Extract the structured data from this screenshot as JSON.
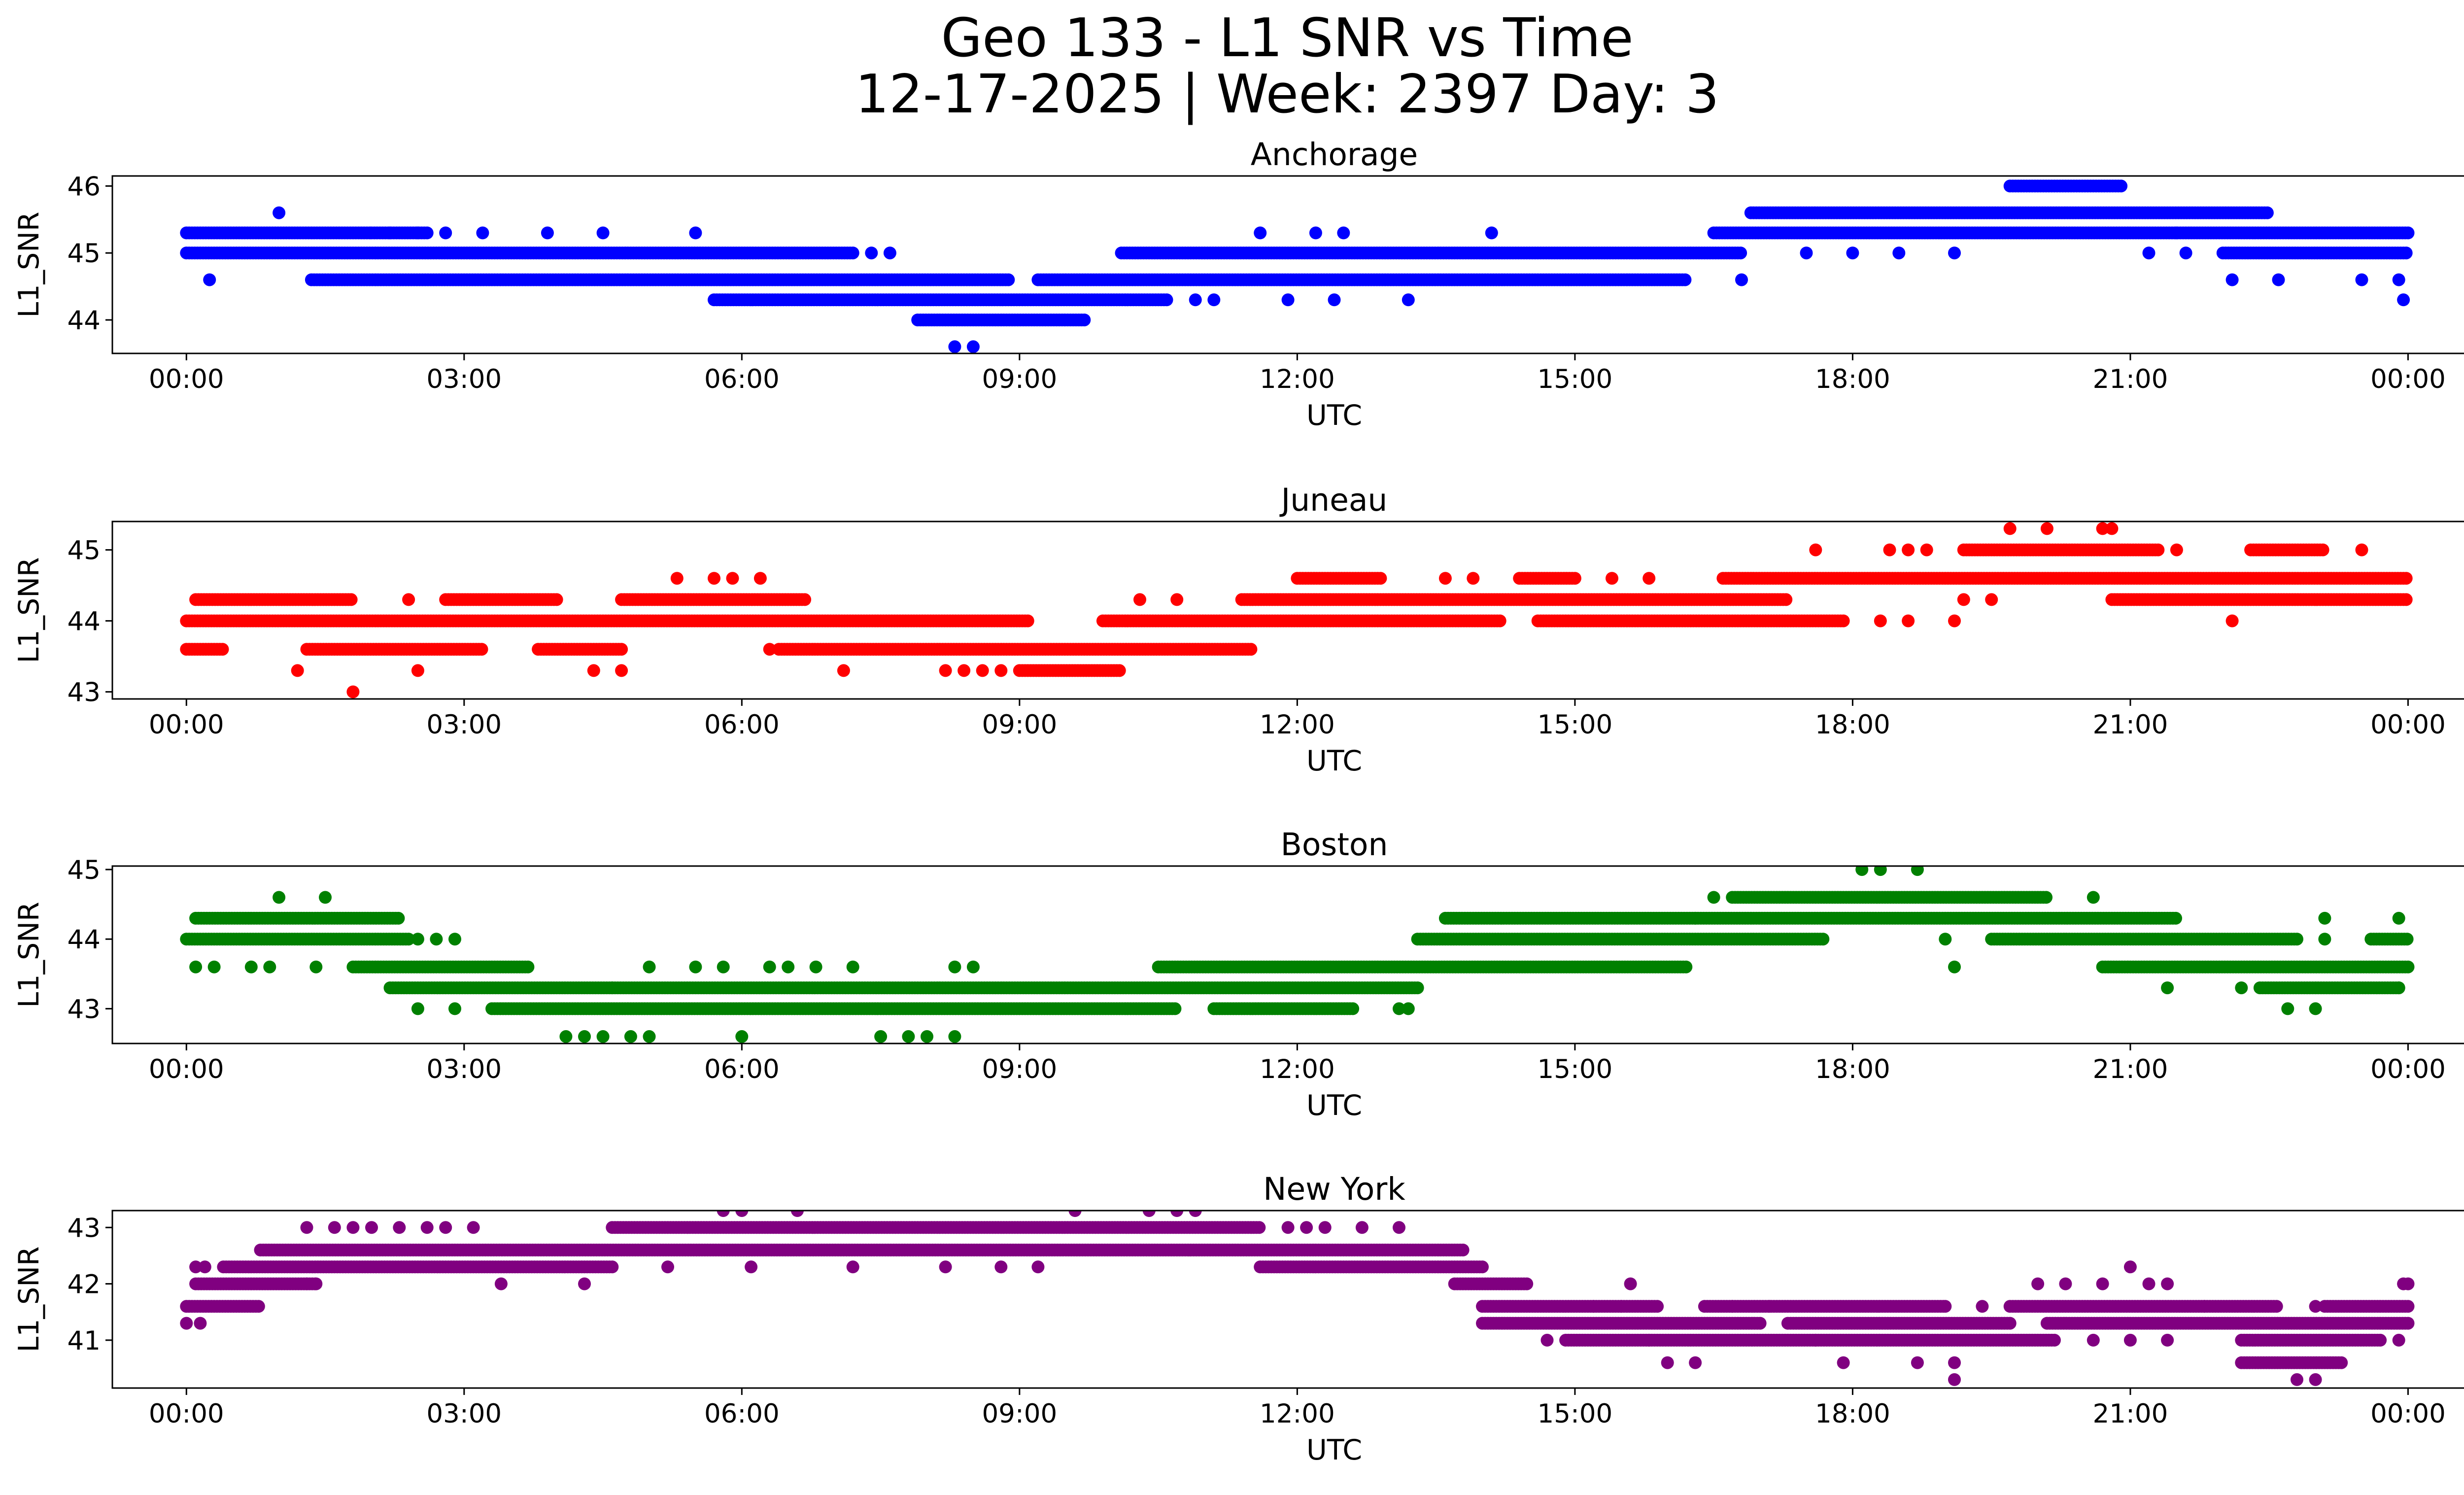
{
  "figure": {
    "title_line1": "Geo 133 - L1 SNR vs Time",
    "title_line2": "12-17-2025 | Week: 2397 Day: 3"
  },
  "chart_data": [
    {
      "type": "scatter",
      "title": "Anchorage",
      "xlabel": "UTC",
      "ylabel": "L1_SNR",
      "color": "#0000ff",
      "x_range_hours": [
        -0.8,
        25.6
      ],
      "ylim": [
        43.5,
        46.15
      ],
      "yticks": [
        44,
        45,
        46
      ],
      "xticks": [
        "00:00",
        "03:00",
        "06:00",
        "09:00",
        "12:00",
        "15:00",
        "18:00",
        "21:00",
        "00:00"
      ],
      "xtick_hours": [
        0,
        3,
        6,
        9,
        12,
        15,
        18,
        21,
        24
      ],
      "bands": [
        {
          "y": 45.3,
          "x": [
            [
              0,
              2
            ],
            [
              2,
              2.6
            ],
            [
              16.5,
              24
            ]
          ]
        },
        {
          "y": 45.0,
          "x": [
            [
              0,
              7.2
            ],
            [
              10.1,
              16.8
            ],
            [
              22,
              24
            ]
          ]
        },
        {
          "y": 44.6,
          "x": [
            [
              1.35,
              8.9
            ],
            [
              9.2,
              16.2
            ]
          ]
        },
        {
          "y": 45.6,
          "x": [
            [
              16.9,
              22.5
            ]
          ]
        },
        {
          "y": 44.3,
          "x": [
            [
              5.7,
              10.6
            ]
          ]
        },
        {
          "y": 44.0,
          "x": [
            [
              7.9,
              9.7
            ]
          ]
        },
        {
          "y": 46.0,
          "x": [
            [
              19.7,
              20.9
            ]
          ]
        }
      ],
      "points": [
        {
          "y": 45.6,
          "x": [
            1.0
          ]
        },
        {
          "y": 44.6,
          "x": [
            0.25,
            16.8,
            22.1,
            22.6,
            23.5,
            23.9
          ]
        },
        {
          "y": 45.3,
          "x": [
            2.2,
            2.5,
            2.8,
            3.2,
            3.9,
            4.5,
            5.5,
            11.6,
            12.2,
            12.5,
            14.1,
            21.5
          ]
        },
        {
          "y": 45.0,
          "x": [
            7.4,
            7.6,
            17.5,
            18.0,
            18.5,
            19.1,
            21.2,
            21.6
          ]
        },
        {
          "y": 44.3,
          "x": [
            10.9,
            11.1,
            11.9,
            12.4,
            13.2
          ]
        },
        {
          "y": 43.6,
          "x": [
            8.3,
            8.5
          ]
        },
        {
          "y": 44.3,
          "x": [
            23.95
          ]
        }
      ]
    },
    {
      "type": "scatter",
      "title": "Juneau",
      "xlabel": "UTC",
      "ylabel": "L1_SNR",
      "color": "#ff0000",
      "x_range_hours": [
        -0.8,
        25.6
      ],
      "ylim": [
        42.9,
        45.4
      ],
      "yticks": [
        43,
        44,
        45
      ],
      "xticks": [
        "00:00",
        "03:00",
        "06:00",
        "09:00",
        "12:00",
        "15:00",
        "18:00",
        "21:00",
        "00:00"
      ],
      "xtick_hours": [
        0,
        3,
        6,
        9,
        12,
        15,
        18,
        21,
        24
      ],
      "bands": [
        {
          "y": 44.0,
          "x": [
            [
              0,
              9.1
            ],
            [
              9.9,
              14.2
            ],
            [
              14.6,
              17.9
            ]
          ]
        },
        {
          "y": 44.3,
          "x": [
            [
              0.1,
              1.8
            ],
            [
              2.8,
              4.0
            ],
            [
              4.7,
              6.7
            ],
            [
              11.4,
              17.3
            ],
            [
              20.8,
              24
            ]
          ]
        },
        {
          "y": 43.6,
          "x": [
            [
              0,
              0.4
            ],
            [
              1.3,
              3.2
            ],
            [
              3.8,
              4.7
            ],
            [
              6.4,
              11.5
            ]
          ]
        },
        {
          "y": 44.6,
          "x": [
            [
              12.0,
              12.9
            ],
            [
              14.4,
              15.0
            ],
            [
              16.6,
              24
            ]
          ]
        },
        {
          "y": 45.0,
          "x": [
            [
              19.2,
              21.3
            ],
            [
              22.3,
              23.1
            ]
          ]
        },
        {
          "y": 43.3,
          "x": [
            [
              9.0,
              10.1
            ]
          ]
        }
      ],
      "points": [
        {
          "y": 43.0,
          "x": [
            1.8
          ]
        },
        {
          "y": 43.3,
          "x": [
            1.2,
            2.5,
            4.4,
            4.7,
            7.1,
            8.2,
            8.4,
            8.6,
            8.8
          ]
        },
        {
          "y": 44.6,
          "x": [
            5.3,
            5.7,
            5.9,
            6.2,
            13.6,
            13.9,
            15.4,
            15.8
          ]
        },
        {
          "y": 44.3,
          "x": [
            2.4,
            10.3,
            10.7,
            19.2,
            19.5
          ]
        },
        {
          "y": 44.0,
          "x": [
            18.3,
            18.6,
            19.1,
            22.1
          ]
        },
        {
          "y": 45.0,
          "x": [
            17.6,
            18.4,
            18.6,
            18.8,
            21.5,
            23.5
          ]
        },
        {
          "y": 45.3,
          "x": [
            19.7,
            20.1,
            20.7,
            20.8
          ]
        },
        {
          "y": 43.6,
          "x": [
            6.3
          ]
        }
      ]
    },
    {
      "type": "scatter",
      "title": "Boston",
      "xlabel": "UTC",
      "ylabel": "L1_SNR",
      "color": "#008000",
      "x_range_hours": [
        -0.8,
        25.6
      ],
      "ylim": [
        42.5,
        45.05
      ],
      "yticks": [
        43,
        44,
        45
      ],
      "xticks": [
        "00:00",
        "03:00",
        "06:00",
        "09:00",
        "12:00",
        "15:00",
        "18:00",
        "21:00",
        "00:00"
      ],
      "xtick_hours": [
        0,
        3,
        6,
        9,
        12,
        15,
        18,
        21,
        24
      ],
      "bands": [
        {
          "y": 44.0,
          "x": [
            [
              0,
              2.4
            ],
            [
              13.3,
              17.7
            ],
            [
              19.5,
              22.8
            ],
            [
              23.6,
              24
            ]
          ]
        },
        {
          "y": 44.3,
          "x": [
            [
              0.1,
              2.3
            ],
            [
              13.6,
              16.3
            ],
            [
              16.3,
              21.5
            ]
          ]
        },
        {
          "y": 43.6,
          "x": [
            [
              1.8,
              3.7
            ],
            [
              10.5,
              16.2
            ],
            [
              20.7,
              24
            ]
          ]
        },
        {
          "y": 43.3,
          "x": [
            [
              2.2,
              4.6
            ],
            [
              4.6,
              13.3
            ],
            [
              22.4,
              23.9
            ]
          ]
        },
        {
          "y": 43.0,
          "x": [
            [
              3.3,
              10.7
            ],
            [
              11.1,
              12.6
            ]
          ]
        },
        {
          "y": 44.6,
          "x": [
            [
              16.7,
              20.1
            ]
          ]
        }
      ],
      "points": [
        {
          "y": 42.6,
          "x": [
            4.1,
            4.3,
            4.5,
            4.8,
            5.0,
            6.0,
            7.5,
            7.8,
            8.0,
            8.3
          ]
        },
        {
          "y": 43.6,
          "x": [
            0.1,
            0.3,
            0.7,
            0.9,
            1.4,
            5.0,
            5.5,
            5.8,
            6.3,
            6.5,
            6.8,
            7.2,
            8.3,
            8.5
          ]
        },
        {
          "y": 44.6,
          "x": [
            1.0,
            1.5,
            16.5,
            20.6
          ]
        },
        {
          "y": 44.0,
          "x": [
            2.5,
            2.7,
            2.9,
            19.0,
            23.1
          ]
        },
        {
          "y": 43.0,
          "x": [
            2.5,
            2.9,
            13.1,
            13.2,
            22.7,
            23.0
          ]
        },
        {
          "y": 45.0,
          "x": [
            18.1,
            18.3,
            18.7
          ]
        },
        {
          "y": 43.6,
          "x": [
            19.1
          ]
        },
        {
          "y": 44.3,
          "x": [
            23.1,
            23.9
          ]
        },
        {
          "y": 43.3,
          "x": [
            21.4,
            22.2,
            23.9
          ]
        }
      ]
    },
    {
      "type": "scatter",
      "title": "New York",
      "xlabel": "UTC",
      "ylabel": "L1_SNR",
      "color": "#800080",
      "x_range_hours": [
        -0.8,
        25.6
      ],
      "ylim": [
        40.15,
        43.3
      ],
      "yticks": [
        41,
        42,
        43
      ],
      "xticks": [
        "00:00",
        "03:00",
        "06:00",
        "09:00",
        "12:00",
        "15:00",
        "18:00",
        "21:00",
        "00:00"
      ],
      "xtick_hours": [
        0,
        3,
        6,
        9,
        12,
        15,
        18,
        21,
        24
      ],
      "bands": [
        {
          "y": 42.6,
          "x": [
            [
              0.8,
              13.8
            ]
          ]
        },
        {
          "y": 42.3,
          "x": [
            [
              0.4,
              4.6
            ],
            [
              11.6,
              14.0
            ]
          ]
        },
        {
          "y": 43.0,
          "x": [
            [
              4.6,
              11.6
            ]
          ]
        },
        {
          "y": 42.0,
          "x": [
            [
              0.1,
              1.4
            ],
            [
              13.7,
              14.5
            ]
          ]
        },
        {
          "y": 41.6,
          "x": [
            [
              0,
              0.8
            ],
            [
              14.0,
              15.9
            ],
            [
              16.4,
              19.0
            ],
            [
              19.7,
              22.6
            ],
            [
              23.1,
              24
            ]
          ]
        },
        {
          "y": 41.3,
          "x": [
            [
              14.0,
              17.0
            ],
            [
              17.3,
              19.7
            ],
            [
              20.1,
              24
            ]
          ]
        },
        {
          "y": 41.0,
          "x": [
            [
              14.9,
              20.2
            ],
            [
              22.2,
              23.7
            ]
          ]
        },
        {
          "y": 40.6,
          "x": [
            [
              22.2,
              23.3
            ]
          ]
        }
      ],
      "points": [
        {
          "y": 42.3,
          "x": [
            0.1,
            0.2
          ]
        },
        {
          "y": 41.3,
          "x": [
            0,
            0.15
          ]
        },
        {
          "y": 43.0,
          "x": [
            1.3,
            1.6,
            1.8,
            2.0,
            2.3,
            2.6,
            2.8,
            3.1,
            11.9,
            12.1,
            12.3,
            12.7,
            13.1
          ]
        },
        {
          "y": 42.0,
          "x": [
            1.3,
            1.4,
            3.4,
            4.3
          ]
        },
        {
          "y": 43.3,
          "x": [
            5.8,
            6.0,
            6.6,
            9.6,
            10.4,
            10.7,
            10.9
          ]
        },
        {
          "y": 42.3,
          "x": [
            5.2,
            6.1,
            7.2,
            8.2,
            8.8,
            9.2
          ]
        },
        {
          "y": 42.0,
          "x": [
            20.0,
            20.3,
            20.7,
            21.2,
            21.4
          ]
        },
        {
          "y": 42.3,
          "x": [
            21.0
          ]
        },
        {
          "y": 42.0,
          "x": [
            23.95,
            24.0
          ]
        },
        {
          "y": 41.6,
          "x": [
            15.2,
            15.5,
            16.7,
            17.1,
            21.8,
            23.0
          ]
        },
        {
          "y": 41.0,
          "x": [
            14.7,
            15.8,
            17.6,
            20.6,
            21.0,
            21.4,
            23.9
          ]
        },
        {
          "y": 40.6,
          "x": [
            16.0,
            16.3,
            17.9,
            18.7,
            19.1
          ]
        },
        {
          "y": 40.3,
          "x": [
            19.1,
            22.8,
            23.0
          ]
        },
        {
          "y": 41.6,
          "x": [
            19.0,
            19.4
          ]
        },
        {
          "y": 42.0,
          "x": [
            15.6
          ]
        }
      ]
    }
  ]
}
